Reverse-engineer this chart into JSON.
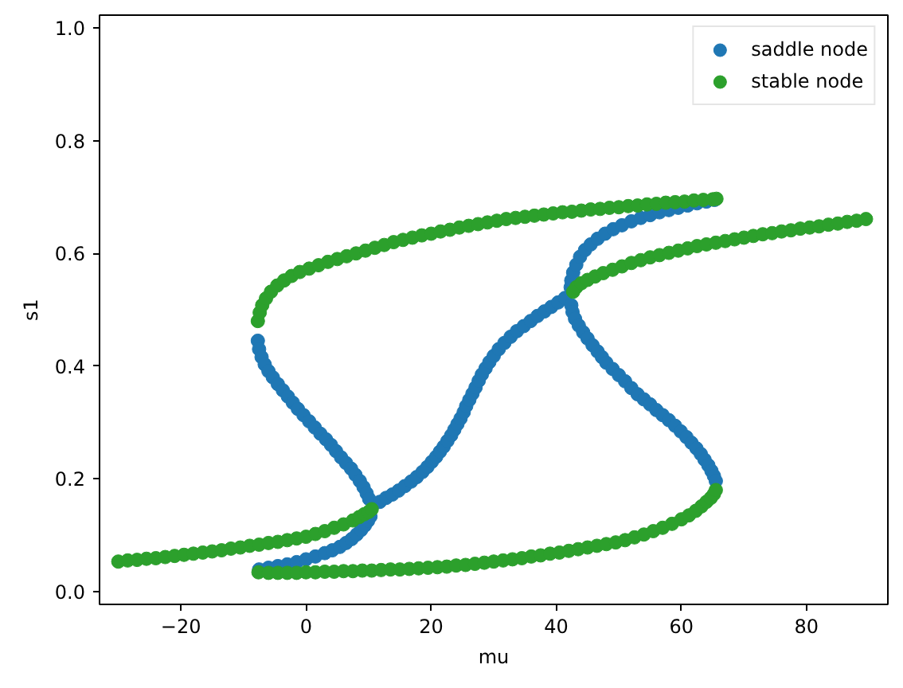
{
  "chart_data": {
    "type": "scatter",
    "xlabel": "mu",
    "ylabel": "s1",
    "xlim": [
      -33,
      93
    ],
    "ylim": [
      -0.023,
      1.023
    ],
    "xticks": [
      {
        "value": -20,
        "label": "−20"
      },
      0,
      20,
      40,
      60,
      80
    ],
    "yticks": [
      {
        "value": 0,
        "label": "0.0"
      },
      {
        "value": 0.2,
        "label": "0.2"
      },
      {
        "value": 0.4,
        "label": "0.4"
      },
      {
        "value": 0.6,
        "label": "0.6"
      },
      {
        "value": 0.8,
        "label": "0.8"
      },
      {
        "value": 1,
        "label": "1.0"
      }
    ],
    "legend": "top right",
    "marker": "circle",
    "series": [
      {
        "name": "saddle node",
        "color": "#1f77b4",
        "x": [
          -7.7,
          -7.5,
          -7.1,
          -6.6,
          -6.0,
          -5.3,
          -4.5,
          -3.7,
          -2.9,
          -2.1,
          -1.3,
          -0.4,
          0.5,
          1.4,
          2.3,
          3.2,
          4.0,
          4.8,
          5.6,
          6.4,
          7.2,
          7.9,
          8.6,
          9.2,
          9.7,
          10.1,
          -7.5,
          -6.0,
          -4.5,
          -3.0,
          -1.5,
          0.0,
          1.5,
          3.0,
          4.2,
          5.4,
          6.4,
          7.3,
          8.1,
          8.8,
          9.4,
          9.9,
          10.3,
          11.8,
          12.8,
          13.8,
          14.8,
          15.8,
          16.8,
          17.7,
          18.6,
          19.4,
          20.1,
          20.8,
          21.4,
          22.0,
          22.6,
          23.2,
          23.7,
          24.2,
          24.7,
          25.2,
          25.6,
          26.1,
          26.6,
          27.1,
          27.6,
          28.1,
          28.7,
          29.3,
          30.0,
          30.8,
          31.7,
          32.7,
          33.7,
          34.8,
          35.9,
          37.0,
          38.1,
          39.2,
          40.3,
          41.4,
          42.3,
          42.4,
          42.7,
          43.2,
          43.8,
          44.6,
          45.5,
          46.6,
          47.8,
          49.1,
          50.5,
          52.0,
          53.5,
          55.0,
          56.5,
          58.0,
          59.5,
          61.0,
          62.5,
          64.0,
          65.3,
          42.4,
          42.6,
          43.0,
          43.6,
          44.3,
          45.0,
          45.8,
          46.6,
          47.3,
          48.0,
          49.0,
          50.0,
          51.0,
          52.0,
          53.0,
          54.0,
          55.0,
          56.0,
          57.0,
          58.0,
          59.0,
          59.9,
          60.8,
          61.6,
          62.4,
          63.1,
          63.7,
          64.3,
          64.8,
          65.2,
          65.5
        ],
        "values": [
          0.445,
          0.43,
          0.416,
          0.403,
          0.391,
          0.38,
          0.368,
          0.357,
          0.346,
          0.335,
          0.324,
          0.313,
          0.302,
          0.291,
          0.28,
          0.27,
          0.26,
          0.249,
          0.238,
          0.228,
          0.218,
          0.207,
          0.196,
          0.185,
          0.174,
          0.164,
          0.039,
          0.042,
          0.045,
          0.048,
          0.052,
          0.057,
          0.062,
          0.068,
          0.073,
          0.079,
          0.086,
          0.093,
          0.101,
          0.109,
          0.117,
          0.125,
          0.133,
          0.159,
          0.166,
          0.172,
          0.179,
          0.187,
          0.195,
          0.203,
          0.212,
          0.221,
          0.23,
          0.239,
          0.248,
          0.257,
          0.267,
          0.277,
          0.287,
          0.297,
          0.307,
          0.318,
          0.329,
          0.34,
          0.351,
          0.362,
          0.374,
          0.385,
          0.396,
          0.407,
          0.418,
          0.43,
          0.441,
          0.452,
          0.462,
          0.471,
          0.48,
          0.489,
          0.497,
          0.505,
          0.513,
          0.521,
          0.54,
          0.552,
          0.566,
          0.58,
          0.594,
          0.606,
          0.616,
          0.626,
          0.635,
          0.643,
          0.65,
          0.657,
          0.663,
          0.668,
          0.673,
          0.677,
          0.681,
          0.685,
          0.689,
          0.692,
          0.695,
          0.508,
          0.496,
          0.484,
          0.472,
          0.46,
          0.449,
          0.437,
          0.426,
          0.416,
          0.406,
          0.395,
          0.384,
          0.373,
          0.361,
          0.35,
          0.341,
          0.332,
          0.322,
          0.313,
          0.304,
          0.294,
          0.284,
          0.274,
          0.264,
          0.254,
          0.244,
          0.234,
          0.224,
          0.214,
          0.205,
          0.196
        ]
      },
      {
        "name": "stable node",
        "color": "#2ca02c",
        "x": [
          -30.0,
          -28.5,
          -27.0,
          -25.5,
          -24.0,
          -22.5,
          -21.0,
          -19.5,
          -18.0,
          -16.5,
          -15.0,
          -13.5,
          -12.0,
          -10.5,
          -9.0,
          -7.5,
          -6.0,
          -4.5,
          -3.0,
          -1.5,
          0.0,
          1.5,
          3.0,
          4.5,
          6.0,
          7.5,
          8.5,
          9.3,
          10.0,
          10.5,
          -7.6,
          -6.0,
          -4.5,
          -3.0,
          -1.5,
          0.0,
          1.5,
          3.0,
          4.5,
          6.0,
          7.5,
          9.0,
          10.5,
          12.0,
          13.5,
          15.0,
          16.5,
          18.0,
          19.5,
          21.0,
          22.5,
          24.0,
          25.5,
          27.0,
          28.5,
          30.0,
          31.5,
          33.0,
          34.5,
          36.0,
          37.5,
          39.0,
          40.5,
          42.0,
          43.5,
          45.0,
          46.5,
          48.0,
          49.5,
          51.0,
          52.5,
          54.0,
          55.5,
          57.0,
          58.5,
          60.0,
          61.2,
          62.3,
          63.2,
          64.0,
          64.7,
          65.2,
          65.5,
          -7.7,
          -7.4,
          -7.0,
          -6.4,
          -5.6,
          -4.6,
          -3.5,
          -2.3,
          -1.0,
          0.5,
          2.0,
          3.5,
          5.0,
          6.5,
          8.0,
          9.5,
          11.0,
          12.5,
          14.0,
          15.5,
          17.0,
          18.5,
          20.0,
          21.5,
          23.0,
          24.5,
          26.0,
          27.5,
          29.0,
          30.5,
          32.0,
          33.5,
          35.0,
          36.5,
          38.0,
          39.5,
          41.0,
          42.5,
          44.0,
          45.5,
          47.0,
          48.5,
          50.0,
          51.5,
          53.0,
          54.5,
          56.0,
          57.5,
          59.0,
          60.5,
          62.0,
          63.5,
          65.0,
          65.6,
          42.7,
          43.2,
          44.0,
          45.0,
          46.2,
          47.5,
          49.0,
          50.5,
          52.0,
          53.5,
          55.0,
          56.5,
          58.0,
          59.5,
          61.0,
          62.5,
          64.0,
          65.5,
          67.0,
          68.5,
          70.0,
          71.5,
          73.0,
          74.5,
          76.0,
          77.5,
          79.0,
          80.5,
          82.0,
          83.5,
          85.0,
          86.5,
          88.0,
          89.5
        ],
        "values": [
          0.053,
          0.055,
          0.056,
          0.058,
          0.059,
          0.061,
          0.063,
          0.065,
          0.067,
          0.069,
          0.071,
          0.073,
          0.076,
          0.078,
          0.081,
          0.083,
          0.086,
          0.088,
          0.091,
          0.094,
          0.097,
          0.102,
          0.107,
          0.113,
          0.119,
          0.126,
          0.132,
          0.137,
          0.141,
          0.146,
          0.034,
          0.033,
          0.033,
          0.033,
          0.033,
          0.034,
          0.034,
          0.035,
          0.035,
          0.036,
          0.036,
          0.037,
          0.037,
          0.038,
          0.039,
          0.039,
          0.04,
          0.041,
          0.042,
          0.043,
          0.044,
          0.046,
          0.047,
          0.049,
          0.051,
          0.053,
          0.055,
          0.057,
          0.059,
          0.062,
          0.064,
          0.067,
          0.069,
          0.072,
          0.075,
          0.078,
          0.081,
          0.084,
          0.087,
          0.091,
          0.096,
          0.101,
          0.107,
          0.113,
          0.12,
          0.128,
          0.135,
          0.143,
          0.151,
          0.159,
          0.166,
          0.173,
          0.18,
          0.48,
          0.495,
          0.508,
          0.52,
          0.532,
          0.543,
          0.552,
          0.56,
          0.567,
          0.573,
          0.579,
          0.585,
          0.59,
          0.595,
          0.6,
          0.605,
          0.61,
          0.615,
          0.62,
          0.624,
          0.628,
          0.632,
          0.635,
          0.639,
          0.642,
          0.646,
          0.649,
          0.652,
          0.655,
          0.658,
          0.661,
          0.663,
          0.665,
          0.667,
          0.669,
          0.671,
          0.673,
          0.674,
          0.676,
          0.678,
          0.679,
          0.681,
          0.682,
          0.684,
          0.685,
          0.687,
          0.688,
          0.69,
          0.691,
          0.692,
          0.694,
          0.695,
          0.696,
          0.697,
          0.532,
          0.54,
          0.547,
          0.553,
          0.559,
          0.565,
          0.571,
          0.577,
          0.583,
          0.588,
          0.593,
          0.597,
          0.601,
          0.605,
          0.609,
          0.613,
          0.616,
          0.619,
          0.622,
          0.625,
          0.628,
          0.631,
          0.634,
          0.636,
          0.639,
          0.641,
          0.644,
          0.646,
          0.648,
          0.651,
          0.653,
          0.656,
          0.658,
          0.661
        ]
      }
    ]
  }
}
